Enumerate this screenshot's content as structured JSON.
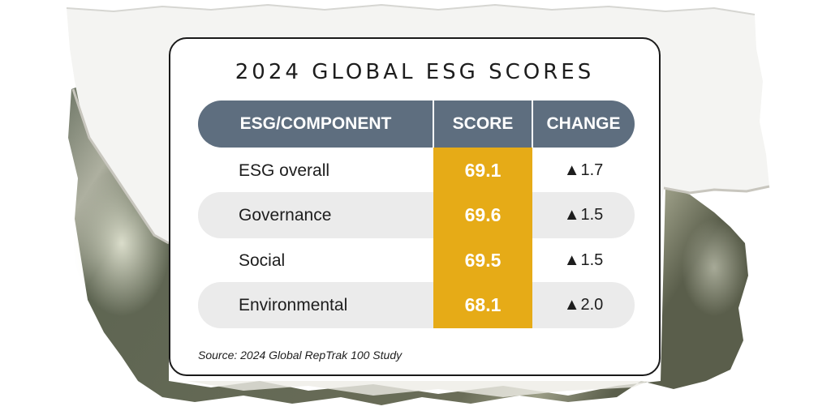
{
  "title": "2024 GLOBAL ESG SCORES",
  "headers": {
    "component": "ESG/COMPONENT",
    "score": "SCORE",
    "change": "CHANGE"
  },
  "rows": [
    {
      "label": "ESG overall",
      "score": "69.1",
      "change": "1.7"
    },
    {
      "label": "Governance",
      "score": "69.6",
      "change": "1.5"
    },
    {
      "label": "Social",
      "score": "69.5",
      "change": "1.5"
    },
    {
      "label": "Environmental",
      "score": "68.1",
      "change": "2.0"
    }
  ],
  "change_symbol": "▲",
  "source": "Source: 2024 Global RepTrak 100 Study",
  "colors": {
    "header": "#5e6e7f",
    "score_cell": "#e6ab17",
    "row_shade": "#ebebeb",
    "card_border": "#1a1a1a"
  }
}
